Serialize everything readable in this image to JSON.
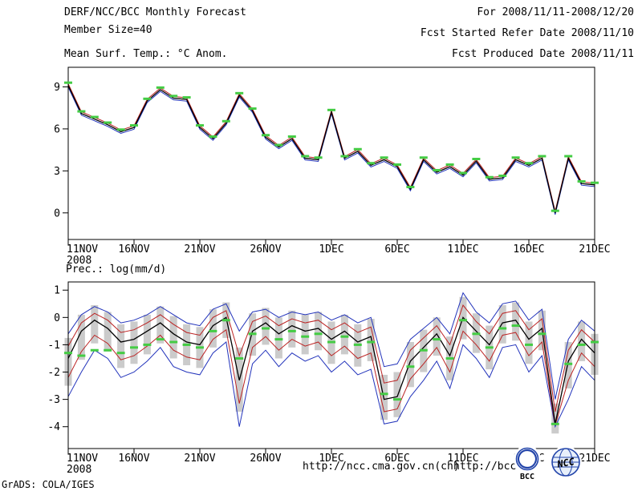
{
  "header": {
    "left": [
      "DERF/NCC/BCC Monthly Forecast",
      "Member Size=40",
      "Mean Surf. Temp.: °C Anom."
    ],
    "right": [
      "For 2008/11/11-2008/12/20",
      "Fcst Started Refer Date 2008/11/10",
      "Fcst Produced Date 2008/11/11"
    ]
  },
  "footer": {
    "grads_credit": "GrADS: COLA/IGES",
    "url_left": "http://ncc.cma.gov.cn(ch)",
    "url_right": "http://bcc.c"
  },
  "logos": {
    "bcc": "BCC",
    "ncc": "NCC"
  },
  "colors": {
    "mean_line": "#000000",
    "quartile_line": "#bb2222",
    "extreme_line": "#2233bb",
    "obs_marker": "#44cc44",
    "spread_bar": "#cbcbcb"
  },
  "chart_data": [
    {
      "type": "line",
      "title": "Mean Surf. Temp.: °C Anom.",
      "x_tick_labels": [
        "11NOV",
        "16NOV",
        "21NOV",
        "26NOV",
        "1DEC",
        "6DEC",
        "11DEC",
        "16DEC",
        "21DEC"
      ],
      "x_year_label": "2008",
      "x_days_span": 40,
      "ylim": [
        -1.9,
        10.4
      ],
      "yticks": [
        0,
        3,
        6,
        9
      ],
      "member_spread": 0.12,
      "series": [
        {
          "name": "ensemble-mean",
          "color": "#000000",
          "width": 1.3,
          "values": [
            9.1,
            7.1,
            6.7,
            6.3,
            5.8,
            6.1,
            8.0,
            8.8,
            8.2,
            8.1,
            6.1,
            5.3,
            6.4,
            8.4,
            7.3,
            5.4,
            4.7,
            5.3,
            3.9,
            3.8,
            7.2,
            3.9,
            4.4,
            3.4,
            3.8,
            3.3,
            1.7,
            3.8,
            2.9,
            3.3,
            2.7,
            3.7,
            2.4,
            2.5,
            3.8,
            3.4,
            3.9,
            0.0,
            3.9,
            2.1,
            2.0
          ]
        }
      ],
      "markers": {
        "name": "observation",
        "color": "#44cc44",
        "values": [
          9.3,
          7.25,
          6.85,
          6.45,
          5.95,
          6.25,
          8.15,
          8.95,
          8.35,
          8.25,
          6.25,
          5.45,
          6.55,
          8.55,
          7.45,
          5.55,
          4.85,
          5.45,
          4.05,
          3.95,
          7.35,
          4.05,
          4.55,
          3.55,
          3.95,
          3.45,
          1.85,
          3.95,
          3.05,
          3.45,
          2.85,
          3.85,
          2.55,
          2.65,
          3.95,
          3.55,
          4.05,
          0.15,
          4.05,
          2.25,
          2.15
        ]
      }
    },
    {
      "type": "line",
      "title": "Prec.: log(mm/d)",
      "x_tick_labels": [
        "11NOV",
        "16NOV",
        "21NOV",
        "26NOV",
        "1DEC",
        "6DEC",
        "11DEC",
        "16DEC",
        "21DEC"
      ],
      "x_year_label": "2008",
      "x_days_span": 40,
      "ylim": [
        -4.8,
        1.3
      ],
      "yticks": [
        1,
        0,
        -1,
        -2,
        -3,
        -4
      ],
      "bars": {
        "name": "ensemble-spread",
        "top_series": "upper-quartile",
        "bottom_series": "lower-quartile",
        "pad": 0.3,
        "color": "#cbcbcb",
        "width": 9
      },
      "series": [
        {
          "name": "ensemble-max",
          "color": "#2233bb",
          "width": 1,
          "values": [
            -0.6,
            0.1,
            0.4,
            0.2,
            -0.2,
            -0.1,
            0.1,
            0.4,
            0.1,
            -0.2,
            -0.3,
            0.3,
            0.5,
            -0.5,
            0.2,
            0.3,
            0.0,
            0.2,
            0.1,
            0.2,
            -0.1,
            0.1,
            -0.2,
            0.0,
            -1.8,
            -1.7,
            -0.8,
            -0.4,
            0.0,
            -0.6,
            0.9,
            0.2,
            -0.2,
            0.5,
            0.6,
            -0.1,
            0.3,
            -3.0,
            -0.8,
            -0.1,
            -0.5
          ]
        },
        {
          "name": "ensemble-min",
          "color": "#2233bb",
          "width": 1,
          "values": [
            -2.9,
            -2.0,
            -1.2,
            -1.5,
            -2.2,
            -2.0,
            -1.6,
            -1.1,
            -1.8,
            -2.0,
            -2.1,
            -1.3,
            -0.9,
            -4.0,
            -1.7,
            -1.2,
            -1.8,
            -1.3,
            -1.6,
            -1.4,
            -2.0,
            -1.6,
            -2.1,
            -1.9,
            -3.9,
            -3.8,
            -2.9,
            -2.3,
            -1.6,
            -2.6,
            -1.0,
            -1.5,
            -2.2,
            -1.1,
            -1.0,
            -2.0,
            -1.4,
            -4.0,
            -3.0,
            -1.8,
            -2.3
          ]
        },
        {
          "name": "upper-quartile",
          "color": "#bb2222",
          "width": 1,
          "values": [
            -1.05,
            -0.2,
            0.15,
            -0.1,
            -0.55,
            -0.45,
            -0.2,
            0.1,
            -0.25,
            -0.55,
            -0.65,
            0.0,
            0.25,
            -1.4,
            -0.15,
            0.05,
            -0.3,
            -0.05,
            -0.2,
            -0.1,
            -0.45,
            -0.2,
            -0.55,
            -0.35,
            -2.4,
            -2.3,
            -1.2,
            -0.75,
            -0.3,
            -1.0,
            0.45,
            -0.15,
            -0.6,
            0.15,
            0.25,
            -0.45,
            -0.05,
            -3.45,
            -1.2,
            -0.45,
            -0.9
          ]
        },
        {
          "name": "lower-quartile",
          "color": "#bb2222",
          "width": 1,
          "values": [
            -2.2,
            -1.25,
            -0.65,
            -0.95,
            -1.55,
            -1.4,
            -1.05,
            -0.65,
            -1.2,
            -1.45,
            -1.55,
            -0.8,
            -0.45,
            -3.15,
            -1.1,
            -0.7,
            -1.2,
            -0.8,
            -1.05,
            -0.9,
            -1.4,
            -1.05,
            -1.5,
            -1.3,
            -3.45,
            -3.35,
            -2.25,
            -1.7,
            -1.1,
            -2.0,
            -0.5,
            -1.0,
            -1.6,
            -0.65,
            -0.55,
            -1.4,
            -0.9,
            -3.95,
            -2.3,
            -1.3,
            -1.8
          ]
        },
        {
          "name": "ensemble-mean",
          "color": "#000000",
          "width": 1.3,
          "values": [
            -1.5,
            -0.5,
            -0.1,
            -0.4,
            -0.9,
            -0.8,
            -0.5,
            -0.2,
            -0.6,
            -0.9,
            -1.0,
            -0.3,
            0.0,
            -2.3,
            -0.5,
            -0.2,
            -0.6,
            -0.3,
            -0.5,
            -0.4,
            -0.8,
            -0.5,
            -0.9,
            -0.7,
            -3.0,
            -2.9,
            -1.6,
            -1.1,
            -0.6,
            -1.4,
            0.0,
            -0.5,
            -1.0,
            -0.2,
            -0.1,
            -0.8,
            -0.4,
            -3.9,
            -1.6,
            -0.8,
            -1.3
          ]
        }
      ],
      "markers": {
        "name": "observation",
        "color": "#44cc44",
        "values": [
          -1.3,
          -1.4,
          -1.2,
          -1.2,
          -1.3,
          -1.1,
          -1.0,
          -0.8,
          -0.9,
          -1.0,
          -1.1,
          -0.5,
          -0.1,
          -1.5,
          -0.6,
          -0.4,
          -0.8,
          -0.5,
          -0.7,
          -0.6,
          -0.9,
          -0.7,
          -1.0,
          -0.9,
          -2.8,
          -3.0,
          -1.8,
          -1.2,
          -0.8,
          -1.5,
          -0.1,
          -0.6,
          -1.1,
          -0.4,
          -0.3,
          -1.0,
          -0.6,
          -3.9,
          -1.7,
          -1.0,
          -0.9
        ]
      }
    }
  ]
}
